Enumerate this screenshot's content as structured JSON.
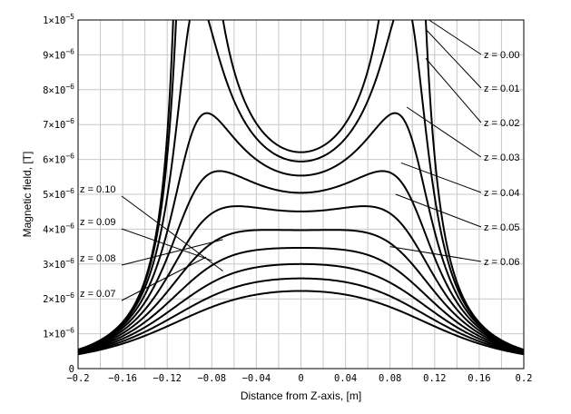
{
  "chart_data": {
    "type": "line",
    "xlabel": "Distance from Z-axis, [m]",
    "ylabel": "Magnetic field, [T]",
    "xlim": [
      -0.2,
      0.2
    ],
    "ylim": [
      0,
      1e-05
    ],
    "grid": true,
    "x_ticks": [
      "−0.2",
      "−0.16",
      "−0.12",
      "−0.08",
      "−0.04",
      "0",
      "0.04",
      "0.08",
      "0.12",
      "0.16",
      "0.2"
    ],
    "x_tick_values": [
      -0.2,
      -0.16,
      -0.12,
      -0.08,
      -0.04,
      0,
      0.04,
      0.08,
      0.12,
      0.16,
      0.2
    ],
    "y_ticks": [
      {
        "mant": "0",
        "exp": ""
      },
      {
        "mant": "1×10",
        "exp": "−6"
      },
      {
        "mant": "2×10",
        "exp": "−6"
      },
      {
        "mant": "3×10",
        "exp": "−6"
      },
      {
        "mant": "4×10",
        "exp": "−6"
      },
      {
        "mant": "5×10",
        "exp": "−6"
      },
      {
        "mant": "6×10",
        "exp": "−6"
      },
      {
        "mant": "7×10",
        "exp": "−6"
      },
      {
        "mant": "8×10",
        "exp": "−6"
      },
      {
        "mant": "9×10",
        "exp": "−6"
      },
      {
        "mant": "1×10",
        "exp": "−5"
      }
    ],
    "y_tick_values": [
      0,
      1e-06,
      2e-06,
      3e-06,
      4e-06,
      5e-06,
      6e-06,
      7e-06,
      8e-06,
      9e-06,
      1e-05
    ],
    "series": [
      {
        "name": "z = 0.00",
        "z": 0.0
      },
      {
        "name": "z = 0.01",
        "z": 0.01
      },
      {
        "name": "z = 0.02",
        "z": 0.02
      },
      {
        "name": "z = 0.03",
        "z": 0.03
      },
      {
        "name": "z = 0.04",
        "z": 0.04
      },
      {
        "name": "z = 0.05",
        "z": 0.05
      },
      {
        "name": "z = 0.06",
        "z": 0.06
      },
      {
        "name": "z = 0.07",
        "z": 0.07
      },
      {
        "name": "z = 0.08",
        "z": 0.08
      },
      {
        "name": "z = 0.09",
        "z": 0.09
      },
      {
        "name": "z = 0.10",
        "z": 0.1
      }
    ],
    "series_values_at_x0": [
      6.3e-06,
      6.2e-06,
      6e-06,
      5.4e-06,
      4.7e-06,
      4.2e-06,
      3.8e-06,
      3.6e-06,
      3.5e-06,
      3.3e-06,
      3.2e-06
    ],
    "annotations": [
      {
        "label": "z = 0.00",
        "side": "right",
        "points_to_x": 0.115,
        "points_to_y": 1e-05
      },
      {
        "label": "z = 0.01",
        "side": "right",
        "points_to_x": 0.113,
        "points_to_y": 9.7e-06
      },
      {
        "label": "z = 0.02",
        "side": "right",
        "points_to_x": 0.112,
        "points_to_y": 8.9e-06
      },
      {
        "label": "z = 0.03",
        "side": "right",
        "points_to_x": 0.095,
        "points_to_y": 7.5e-06
      },
      {
        "label": "z = 0.04",
        "side": "right",
        "points_to_x": 0.09,
        "points_to_y": 5.9e-06
      },
      {
        "label": "z = 0.05",
        "side": "right",
        "points_to_x": 0.085,
        "points_to_y": 5e-06
      },
      {
        "label": "z = 0.06",
        "side": "right",
        "points_to_x": 0.08,
        "points_to_y": 3.5e-06
      },
      {
        "label": "z = 0.10",
        "side": "left",
        "points_to_x": -0.07,
        "points_to_y": 2.8e-06
      },
      {
        "label": "z = 0.09",
        "side": "left",
        "points_to_x": -0.08,
        "points_to_y": 3.1e-06
      },
      {
        "label": "z = 0.08",
        "side": "left",
        "points_to_x": -0.07,
        "points_to_y": 3.7e-06
      },
      {
        "label": "z = 0.07",
        "side": "left",
        "points_to_x": -0.085,
        "points_to_y": 3.2e-06
      }
    ],
    "colors": {
      "line": "#000000",
      "grid": "#c8c8c8",
      "background": "#ffffff"
    }
  }
}
